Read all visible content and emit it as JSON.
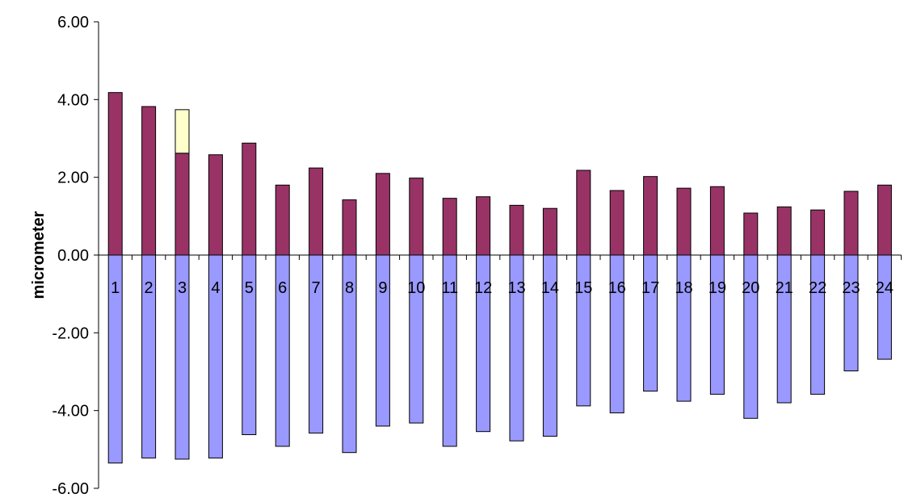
{
  "chart_data": {
    "type": "bar",
    "stacked": true,
    "title": "",
    "xlabel": "",
    "ylabel": "micrometer",
    "ylim": [
      -6,
      6
    ],
    "yticks": [
      6,
      4,
      2,
      0,
      -2,
      -4,
      -6
    ],
    "ytick_labels": [
      "6.00",
      "4.00",
      "2.00",
      "0.00",
      "-2.00",
      "-4.00",
      "-6.00"
    ],
    "grid": false,
    "legend": "none",
    "categories": [
      "1",
      "2",
      "3",
      "4",
      "5",
      "6",
      "7",
      "8",
      "9",
      "10",
      "11",
      "12",
      "13",
      "14",
      "15",
      "16",
      "17",
      "18",
      "19",
      "20",
      "21",
      "22",
      "23",
      "24"
    ],
    "series": [
      {
        "color": "#993366",
        "values": [
          4.18,
          3.82,
          2.62,
          2.58,
          2.88,
          1.8,
          2.24,
          1.42,
          2.1,
          1.98,
          1.46,
          1.5,
          1.28,
          1.2,
          2.18,
          1.66,
          2.02,
          1.72,
          1.76,
          1.08,
          1.24,
          1.16,
          1.64,
          1.8
        ]
      },
      {
        "color": "#FFFFCC",
        "values": [
          0,
          0,
          1.12,
          0,
          0,
          0,
          0,
          0,
          0,
          0,
          0,
          0,
          0,
          0,
          0,
          0,
          0,
          0,
          0,
          0,
          0,
          0,
          0,
          0
        ]
      },
      {
        "color": "#9999FF",
        "values": [
          -5.35,
          -5.22,
          -5.25,
          -5.22,
          -4.62,
          -4.92,
          -4.58,
          -5.08,
          -4.4,
          -4.32,
          -4.92,
          -4.54,
          -4.78,
          -4.66,
          -3.88,
          -4.06,
          -3.5,
          -3.76,
          -3.58,
          -4.2,
          -3.8,
          -3.58,
          -2.98,
          -2.68
        ]
      }
    ]
  }
}
